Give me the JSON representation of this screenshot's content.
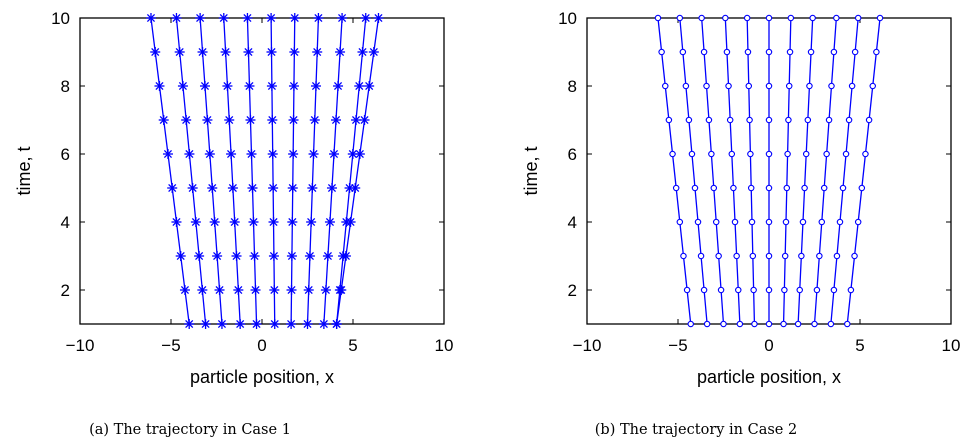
{
  "chart_data": [
    {
      "type": "line",
      "caption": "(a)  The trajectory in Case 1",
      "xlabel": "particle position, x",
      "ylabel": "time, t",
      "xlim": [
        -10,
        10
      ],
      "ylim": [
        1,
        10
      ],
      "xticks": [
        -10,
        -5,
        0,
        5,
        10
      ],
      "yticks": [
        2,
        4,
        6,
        8,
        10
      ],
      "marker": "asterisk",
      "color": "#0000ff",
      "t": [
        1,
        2,
        3,
        4,
        5,
        6,
        7,
        8,
        9,
        10
      ],
      "start_x": [
        -4.0,
        -3.1,
        -2.2,
        -1.2,
        -0.3,
        0.7,
        1.6,
        2.5,
        3.4,
        4.1
      ],
      "end_x": [
        -6.1,
        -4.7,
        -3.4,
        -2.1,
        -0.8,
        0.5,
        1.8,
        3.1,
        4.4,
        5.7,
        6.4
      ]
    },
    {
      "type": "line",
      "caption": "(b)  The trajectory in Case 2",
      "xlabel": "particle position, x",
      "ylabel": "time, t",
      "xlim": [
        -10,
        10
      ],
      "ylim": [
        1,
        10
      ],
      "xticks": [
        -10,
        -5,
        0,
        5,
        10
      ],
      "yticks": [
        2,
        4,
        6,
        8,
        10
      ],
      "marker": "circle",
      "color": "#0000ff",
      "t": [
        1,
        2,
        3,
        4,
        5,
        6,
        7,
        8,
        9,
        10
      ],
      "start_x": [
        -4.3,
        -3.4,
        -2.5,
        -1.6,
        -0.8,
        0.0,
        0.8,
        1.6,
        2.5,
        3.4,
        4.3
      ],
      "end_x": [
        -6.1,
        -4.9,
        -3.7,
        -2.4,
        -1.2,
        0.0,
        1.2,
        2.4,
        3.7,
        4.9,
        6.1
      ]
    }
  ]
}
